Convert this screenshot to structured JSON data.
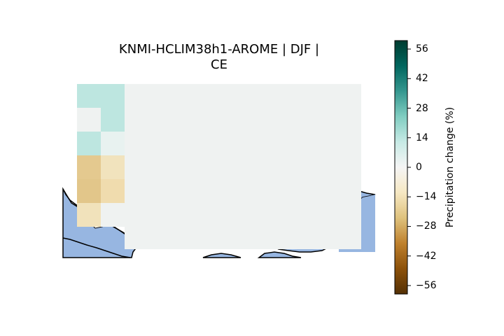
{
  "title": {
    "line1": "KNMI-HCLIM38h1-AROME | DJF |",
    "line2": "CE"
  },
  "colorbar": {
    "label": "Precipitation change (%)",
    "ticks": [
      "56",
      "42",
      "28",
      "14",
      "0",
      "−14",
      "−28",
      "−42",
      "−56"
    ],
    "tick_values": [
      56,
      42,
      28,
      14,
      0,
      -14,
      -28,
      -42,
      -56
    ],
    "range": [
      -60,
      60
    ],
    "colormap_name": "BrBG",
    "colors": [
      "#543005",
      "#8c510a",
      "#bf812d",
      "#dfc27d",
      "#f6e8c3",
      "#f5f5f5",
      "#c7eae5",
      "#80cdc1",
      "#35978f",
      "#01665e",
      "#003c30"
    ]
  },
  "map": {
    "ocean_color": "#97b6e1",
    "coastline_color": "#000000",
    "cells": [
      {
        "value": 10,
        "color": "#bde6e0"
      },
      {
        "value": 10,
        "color": "#bde6e0"
      },
      {
        "value": 1,
        "color": "#eff2f1"
      },
      {
        "value": 10,
        "color": "#bde6e0"
      },
      {
        "value": 10,
        "color": "#bde6e0"
      },
      {
        "value": 2,
        "color": "#e8f2f0"
      },
      {
        "value": -20,
        "color": "#e4c98f"
      },
      {
        "value": -10,
        "color": "#f1e3bd"
      },
      {
        "value": -22,
        "color": "#e2c68a"
      },
      {
        "value": -12,
        "color": "#f0dcae"
      },
      {
        "value": -10,
        "color": "#f1e2bb"
      },
      {
        "value": 0.5,
        "color": "#eff2f1"
      }
    ]
  }
}
